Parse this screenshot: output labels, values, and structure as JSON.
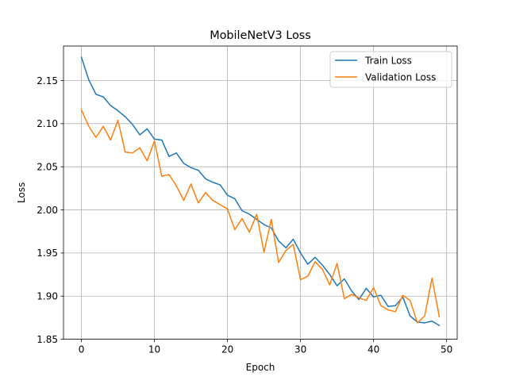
{
  "chart_data": {
    "type": "line",
    "title": "MobileNetV3 Loss",
    "xlabel": "Epoch",
    "ylabel": "Loss",
    "xlim": [
      -2.45,
      51.45
    ],
    "ylim": [
      1.85,
      2.19
    ],
    "xticks": [
      0,
      10,
      20,
      30,
      40,
      50
    ],
    "yticks": [
      1.85,
      1.9,
      1.95,
      2.0,
      2.05,
      2.1,
      2.15
    ],
    "ytick_labels": [
      "1.85",
      "1.90",
      "1.95",
      "2.00",
      "2.05",
      "2.10",
      "2.15"
    ],
    "grid": true,
    "legend_position": "top-right",
    "x": [
      0,
      1,
      2,
      3,
      4,
      5,
      6,
      7,
      8,
      9,
      10,
      11,
      12,
      13,
      14,
      15,
      16,
      17,
      18,
      19,
      20,
      21,
      22,
      23,
      24,
      25,
      26,
      27,
      28,
      29,
      30,
      31,
      32,
      33,
      34,
      35,
      36,
      37,
      38,
      39,
      40,
      41,
      42,
      43,
      44,
      45,
      46,
      47,
      48,
      49
    ],
    "series": [
      {
        "name": "Train Loss",
        "color": "#1f77b4",
        "values": [
          2.177,
          2.151,
          2.134,
          2.131,
          2.121,
          2.115,
          2.108,
          2.099,
          2.087,
          2.094,
          2.082,
          2.081,
          2.062,
          2.066,
          2.054,
          2.049,
          2.046,
          2.036,
          2.032,
          2.029,
          2.017,
          2.013,
          1.999,
          1.995,
          1.989,
          1.983,
          1.979,
          1.964,
          1.956,
          1.966,
          1.95,
          1.937,
          1.945,
          1.936,
          1.925,
          1.912,
          1.92,
          1.906,
          1.896,
          1.909,
          1.899,
          1.901,
          1.888,
          1.889,
          1.899,
          1.877,
          1.87,
          1.869,
          1.871,
          1.866
        ]
      },
      {
        "name": "Validation Loss",
        "color": "#ff7f0e",
        "values": [
          2.116,
          2.097,
          2.084,
          2.097,
          2.081,
          2.104,
          2.067,
          2.066,
          2.072,
          2.057,
          2.08,
          2.039,
          2.041,
          2.028,
          2.011,
          2.03,
          2.008,
          2.02,
          2.011,
          2.006,
          2.001,
          1.977,
          1.99,
          1.974,
          1.995,
          1.951,
          1.989,
          1.939,
          1.953,
          1.96,
          1.919,
          1.923,
          1.94,
          1.931,
          1.913,
          1.938,
          1.897,
          1.902,
          1.898,
          1.895,
          1.91,
          1.889,
          1.884,
          1.882,
          1.901,
          1.895,
          1.869,
          1.877,
          1.921,
          1.876
        ]
      }
    ]
  }
}
